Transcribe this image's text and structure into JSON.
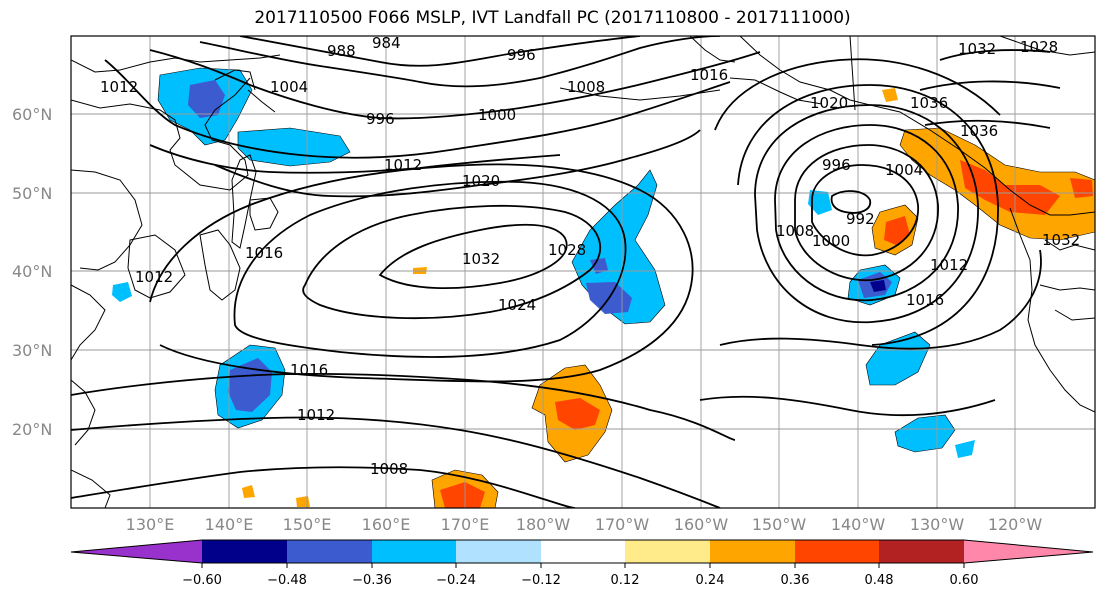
{
  "title": "2017110500 F066 MSLP, IVT Landfall PC (2017110800 - 2017111000)",
  "lat_labels": [
    "60°N",
    "50°N",
    "40°N",
    "30°N",
    "20°N"
  ],
  "lon_labels": [
    "130°E",
    "140°E",
    "150°E",
    "160°E",
    "170°E",
    "180°W",
    "170°W",
    "160°W",
    "150°W",
    "140°W",
    "130°W",
    "120°W"
  ],
  "colorbar": {
    "colors": [
      "#9932cc",
      "#00008b",
      "#3b5bcf",
      "#00bfff",
      "#b0e2ff",
      "#ffffff",
      "#ffeb8a",
      "#ffa500",
      "#ff4500",
      "#b22222",
      "#ff88aa"
    ],
    "tick_labels": [
      "−0.60",
      "−0.48",
      "−0.36",
      "−0.24",
      "−0.12",
      "0.12",
      "0.24",
      "0.36",
      "0.48",
      "0.60"
    ]
  },
  "isobar_labels": [
    "988",
    "984",
    "996",
    "1008",
    "1016",
    "1028",
    "1032",
    "1012",
    "1004",
    "996",
    "1000",
    "1012",
    "1020",
    "1032",
    "1028",
    "1024",
    "1016",
    "1012",
    "1008",
    "1012",
    "1016",
    "996",
    "992",
    "1000",
    "1008",
    "1012",
    "1016",
    "1004",
    "1020",
    "1036",
    "1036",
    "1032"
  ]
}
